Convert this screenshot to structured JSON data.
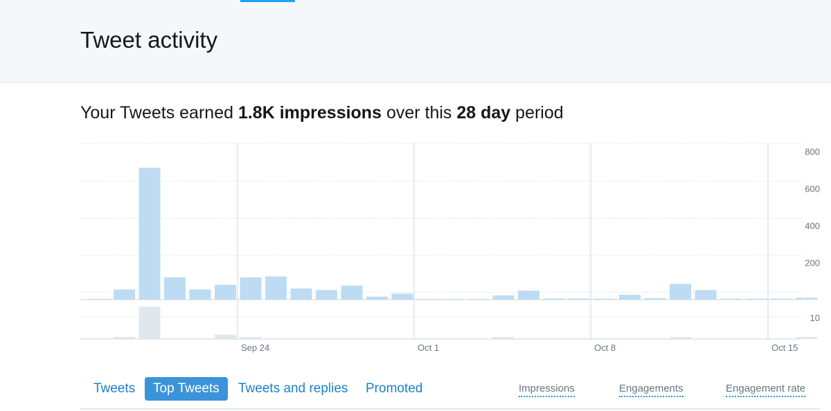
{
  "header": {
    "title": "Tweet activity"
  },
  "summary": {
    "prefix": "Your Tweets earned",
    "impressions_value": "1.8K impressions",
    "middle": "over this",
    "period_value": "28 day",
    "suffix": "period"
  },
  "tabs": [
    {
      "label": "Tweets",
      "active": false
    },
    {
      "label": "Top Tweets",
      "active": true
    },
    {
      "label": "Tweets and replies",
      "active": false
    },
    {
      "label": "Promoted",
      "active": false
    }
  ],
  "metrics": [
    {
      "label": "Impressions"
    },
    {
      "label": "Engagements"
    },
    {
      "label": "Engagement rate"
    }
  ],
  "colors": {
    "impressions_bar": "#bddcf3",
    "engagements_bar": "#e1e8ed",
    "accent": "#1da1f2",
    "tab_active": "#3b94d9"
  },
  "chart_data": [
    {
      "type": "bar",
      "title": "",
      "series": [
        {
          "values": [
            4,
            55,
            712,
            120,
            55,
            80,
            120,
            125,
            60,
            52,
            76,
            16,
            32,
            3,
            2,
            2,
            23,
            48,
            6,
            6,
            5,
            26,
            8,
            85,
            52,
            5,
            5,
            5,
            10
          ]
        }
      ],
      "yticks": [
        200,
        400,
        600,
        800
      ],
      "ylim": [
        0,
        800
      ],
      "xticks": [
        "Sep 24",
        "Oct 1",
        "Oct 8",
        "Oct 15"
      ],
      "grid": true
    },
    {
      "type": "bar",
      "title": "",
      "series": [
        {
          "values": [
            0,
            1,
            15,
            0,
            0,
            2,
            1,
            0,
            0,
            0,
            0,
            0,
            0,
            0,
            0,
            0,
            1,
            0,
            0,
            0,
            0,
            0,
            0,
            1,
            0,
            0,
            0,
            0,
            1
          ]
        }
      ],
      "yticks": [
        10
      ],
      "ylim": [
        0,
        16
      ],
      "grid": true
    }
  ]
}
